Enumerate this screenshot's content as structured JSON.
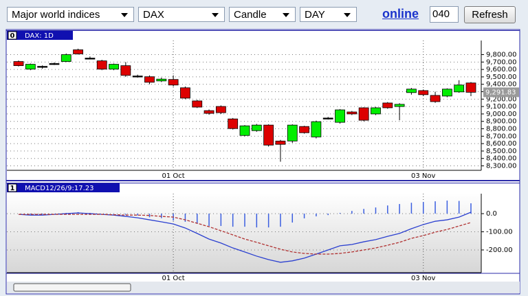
{
  "toolbar": {
    "market": "Major world indices",
    "symbol": "DAX",
    "chart_style": "Candle",
    "period": "DAY",
    "status": "online",
    "interval": "040",
    "refresh": "Refresh"
  },
  "chart_data": [
    {
      "type": "candlestick",
      "badge": "0",
      "title": "DAX: 1D",
      "categories": [
        null,
        null,
        null,
        null,
        null,
        null,
        null,
        null,
        null,
        null,
        null,
        null,
        null,
        "01 Oct",
        null,
        null,
        null,
        null,
        null,
        null,
        null,
        null,
        null,
        null,
        null,
        null,
        null,
        null,
        null,
        null,
        null,
        null,
        null,
        null,
        "03 Nov",
        null,
        null,
        null,
        null
      ],
      "open": [
        9707,
        9604,
        9642,
        9670,
        9707,
        9865,
        9750,
        9716,
        9604,
        9651,
        9512,
        9502,
        9445,
        9465,
        9353,
        9176,
        9045,
        9101,
        8933,
        8710,
        8775,
        8850,
        8635,
        8635,
        8831,
        8690,
        8940,
        8887,
        9027,
        9083,
        9000,
        9148,
        9100,
        9288,
        9315,
        9250,
        9241,
        9297,
        9418
      ],
      "high": [
        9720,
        9680,
        9655,
        9695,
        9815,
        9880,
        9775,
        9730,
        9680,
        9700,
        9530,
        9520,
        9490,
        9520,
        9370,
        9190,
        9060,
        9115,
        8945,
        8850,
        8865,
        8860,
        8650,
        8860,
        8840,
        8910,
        8960,
        9065,
        9040,
        9090,
        9095,
        9160,
        9145,
        9350,
        9330,
        9300,
        9345,
        9455,
        9430
      ],
      "low": [
        9640,
        9590,
        9610,
        9660,
        9700,
        9800,
        9735,
        9590,
        9590,
        9500,
        9490,
        9400,
        9430,
        9370,
        9200,
        9080,
        8990,
        9000,
        8790,
        8700,
        8760,
        8560,
        8356,
        8610,
        8735,
        8670,
        8925,
        8870,
        8985,
        8900,
        8985,
        9070,
        8915,
        9260,
        9240,
        9150,
        9225,
        9285,
        9240
      ],
      "close": [
        9651,
        9670,
        9640,
        9680,
        9800,
        9810,
        9753,
        9604,
        9670,
        9520,
        9510,
        9427,
        9470,
        9390,
        9213,
        9092,
        9008,
        9017,
        8803,
        8840,
        8850,
        8580,
        8590,
        8850,
        8747,
        8896,
        8945,
        9055,
        9000,
        8915,
        9083,
        9083,
        9130,
        9335,
        9260,
        9166,
        9335,
        9390,
        9291.83
      ],
      "last_price_label": "9,291.83",
      "up_color": "#00ee00",
      "down_color": "#dd0000",
      "flat_color": "#000000",
      "ylim": [
        8240,
        9990
      ],
      "yticks": [
        {
          "value": 8300,
          "label": "8,300.00"
        },
        {
          "value": 8400,
          "label": "8,400.00"
        },
        {
          "value": 8500,
          "label": "8,500.00"
        },
        {
          "value": 8600,
          "label": "8,600.00"
        },
        {
          "value": 8700,
          "label": "8,700.00"
        },
        {
          "value": 8800,
          "label": "8,800.00"
        },
        {
          "value": 8900,
          "label": "8,900.00"
        },
        {
          "value": 9000,
          "label": "9,000.00"
        },
        {
          "value": 9100,
          "label": "9,100.00"
        },
        {
          "value": 9200,
          "label": "9,200.00"
        },
        {
          "value": 9300,
          "label": "9,300.00"
        },
        {
          "value": 9400,
          "label": "9,400.00"
        },
        {
          "value": 9500,
          "label": "9,500.00"
        },
        {
          "value": 9600,
          "label": "9,600.00"
        },
        {
          "value": 9700,
          "label": "9,700.00"
        },
        {
          "value": 9800,
          "label": "9,800.00"
        }
      ],
      "grid": true
    },
    {
      "type": "macd",
      "badge": "1",
      "title": "MACD12/26/9:17.23",
      "categories": [
        null,
        null,
        null,
        null,
        null,
        null,
        null,
        null,
        null,
        null,
        null,
        null,
        null,
        "01 Oct",
        null,
        null,
        null,
        null,
        null,
        null,
        null,
        null,
        null,
        null,
        null,
        null,
        null,
        null,
        null,
        null,
        null,
        null,
        null,
        null,
        "03 Nov",
        null,
        null,
        null,
        null
      ],
      "series": [
        {
          "kind": "bar",
          "color": "#3a5ee0",
          "values": [
            0,
            -4,
            -4,
            0,
            4,
            8,
            4,
            0,
            -2,
            -6,
            -10,
            -20,
            -25,
            -38,
            -45,
            -56,
            -68,
            -68,
            -72,
            -72,
            -76,
            -76,
            -72,
            -49,
            -26,
            -15,
            -8,
            4,
            15,
            26,
            34,
            45,
            53,
            60,
            64,
            68,
            72,
            70,
            57
          ]
        },
        {
          "kind": "line",
          "color": "#2a3fd0",
          "values": [
            -4,
            -8,
            -8,
            -4,
            0,
            4,
            0,
            -4,
            -8,
            -15,
            -23,
            -34,
            -45,
            -57,
            -79,
            -109,
            -140,
            -162,
            -189,
            -211,
            -234,
            -253,
            -268,
            -260,
            -245,
            -223,
            -200,
            -177,
            -170,
            -155,
            -143,
            -125,
            -109,
            -83,
            -60,
            -42,
            -34,
            -19,
            8
          ]
        },
        {
          "kind": "line",
          "dash": true,
          "color": "#b03030",
          "values": [
            -4,
            -4,
            -4,
            -4,
            -4,
            -4,
            -4,
            -4,
            -6,
            -8,
            -8,
            -10,
            -15,
            -19,
            -34,
            -53,
            -72,
            -94,
            -117,
            -140,
            -158,
            -177,
            -196,
            -211,
            -219,
            -223,
            -223,
            -219,
            -211,
            -200,
            -189,
            -174,
            -158,
            -136,
            -121,
            -102,
            -87,
            -68,
            -49
          ]
        }
      ],
      "ylim": [
        -325,
        110
      ],
      "yticks": [
        {
          "value": -200,
          "label": "-200.00"
        },
        {
          "value": -100,
          "label": "-100.00"
        },
        {
          "value": 0,
          "label": "0.0"
        }
      ],
      "grid": true
    }
  ]
}
